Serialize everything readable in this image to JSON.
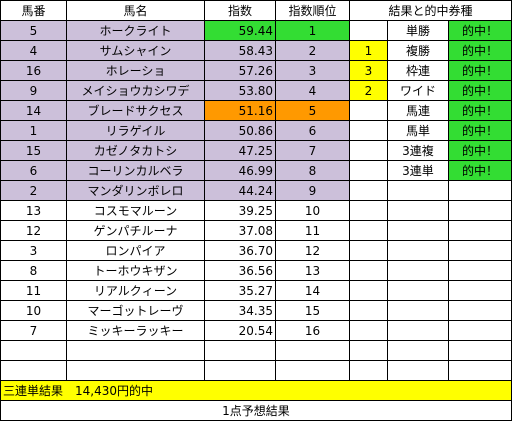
{
  "headers": {
    "number": "馬番",
    "name": "馬名",
    "index": "指数",
    "rank": "指数順位",
    "result_type": "結果と的中券種"
  },
  "colors": {
    "highlight_purple": "#ccc0da",
    "hit_green": "#33dd33",
    "rank5_orange": "#ff9900",
    "result_yellow": "#ffff00"
  },
  "horses": [
    {
      "no": "5",
      "name": "ホークライト",
      "index": "59.44",
      "rank": "1"
    },
    {
      "no": "4",
      "name": "サムシャイン",
      "index": "58.43",
      "rank": "2"
    },
    {
      "no": "16",
      "name": "ホレーショ",
      "index": "57.26",
      "rank": "3"
    },
    {
      "no": "9",
      "name": "メイショウカシワデ",
      "index": "53.80",
      "rank": "4"
    },
    {
      "no": "14",
      "name": "ブレードサクセス",
      "index": "51.16",
      "rank": "5"
    },
    {
      "no": "1",
      "name": "リラゲイル",
      "index": "50.86",
      "rank": "6"
    },
    {
      "no": "15",
      "name": "カゼノタカトシ",
      "index": "47.25",
      "rank": "7"
    },
    {
      "no": "6",
      "name": "コーリンカルベラ",
      "index": "46.99",
      "rank": "8"
    },
    {
      "no": "2",
      "name": "マンダリンボレロ",
      "index": "44.24",
      "rank": "9"
    },
    {
      "no": "13",
      "name": "コスモマルーン",
      "index": "39.25",
      "rank": "10"
    },
    {
      "no": "12",
      "name": "ゲンパチルーナ",
      "index": "37.08",
      "rank": "11"
    },
    {
      "no": "3",
      "name": "ロンパイア",
      "index": "36.70",
      "rank": "12"
    },
    {
      "no": "8",
      "name": "トーホウキザン",
      "index": "36.56",
      "rank": "13"
    },
    {
      "no": "11",
      "name": "リアルクィーン",
      "index": "35.27",
      "rank": "14"
    },
    {
      "no": "10",
      "name": "マーゴットレーヴ",
      "index": "34.35",
      "rank": "15"
    },
    {
      "no": "7",
      "name": "ミッキーラッキー",
      "index": "20.54",
      "rank": "16"
    }
  ],
  "results": [
    {
      "place": "",
      "ticket": "単勝",
      "hit": "的中！"
    },
    {
      "place": "1",
      "ticket": "複勝",
      "hit": "的中！"
    },
    {
      "place": "3",
      "ticket": "枠連",
      "hit": "的中！"
    },
    {
      "place": "2",
      "ticket": "ワイド",
      "hit": "的中！"
    },
    {
      "place": "",
      "ticket": "馬連",
      "hit": "的中！"
    },
    {
      "place": "",
      "ticket": "馬単",
      "hit": "的中！"
    },
    {
      "place": "",
      "ticket": "3連複",
      "hit": "的中！"
    },
    {
      "place": "",
      "ticket": "3連単",
      "hit": "的中！"
    }
  ],
  "summary": "三連単結果　14,430円的中",
  "footer": "1点予想結果"
}
